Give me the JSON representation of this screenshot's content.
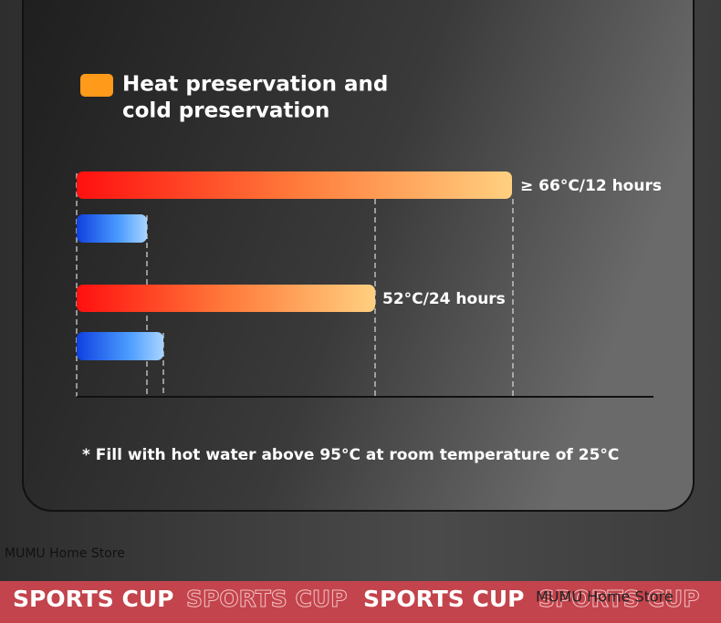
{
  "legend": {
    "label_lines": [
      "Heat preservation and",
      "cold preservation"
    ]
  },
  "bar_labels": [
    "≥ 66°C/12 hours",
    "52°C/24 hours"
  ],
  "footnote": "* Fill with hot water above 95°C at room temperature of 25°C",
  "watermark": "MUMU Home Store",
  "banner": {
    "items": [
      "SPORTS CUP",
      "SPORTS CUP",
      "SPORTS CUP",
      "SPORTS CUP"
    ],
    "watermark": "MUMU Home Store"
  }
}
